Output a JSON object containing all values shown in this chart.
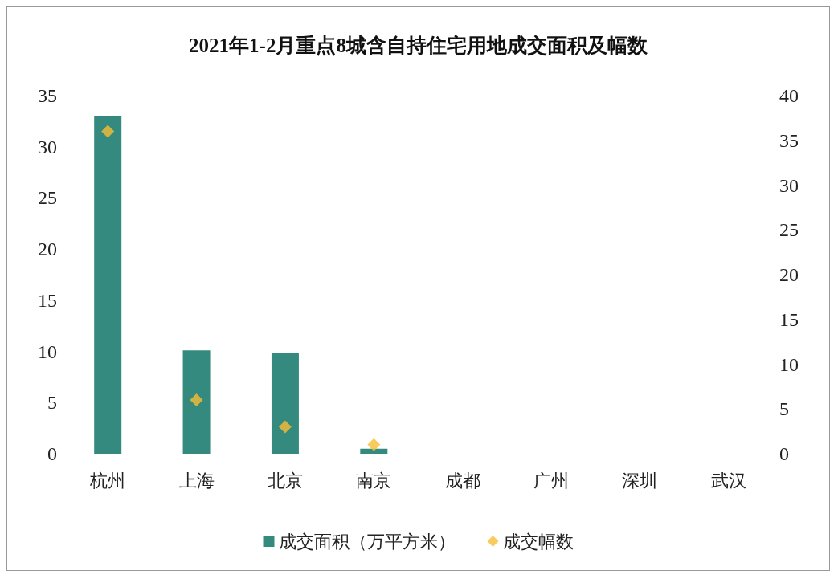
{
  "chart_data": {
    "type": "bar",
    "title": "2021年1-2月重点8城含自持住宅用地成交面积及幅数",
    "categories": [
      "杭州",
      "上海",
      "北京",
      "南京",
      "成都",
      "广州",
      "深圳",
      "武汉"
    ],
    "series": [
      {
        "name": "成交面积（万平方米）",
        "color": "#348a7e",
        "values": [
          33,
          10.1,
          9.8,
          0.5,
          0,
          0,
          0,
          0
        ]
      },
      {
        "name": "成交幅数",
        "type": "scatter",
        "axis": "y2",
        "color": "#f8bd34",
        "values": [
          36,
          6,
          3,
          1,
          null,
          null,
          null,
          null
        ]
      }
    ],
    "ylim": [
      0,
      35
    ],
    "yticks": [
      0,
      5,
      10,
      15,
      20,
      25,
      30,
      35
    ],
    "y2lim": [
      0,
      40
    ],
    "y2ticks": [
      0,
      5,
      10,
      15,
      20,
      25,
      30,
      35,
      40
    ],
    "grid": false,
    "legend": "bottom",
    "marker": "diamond"
  }
}
